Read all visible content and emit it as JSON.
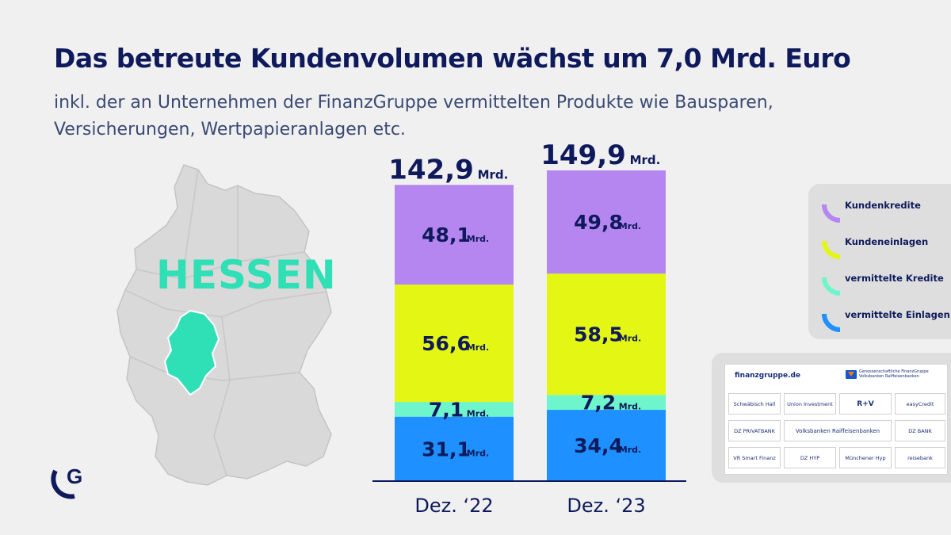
{
  "header": {
    "title": "Das betreute Kundenvolumen wächst um 7,0 Mrd. Euro",
    "subtitle_line1": "inkl. der an Unternehmen der FinanzGruppe vermittelten Produkte wie Bausparen,",
    "subtitle_line2": "Versicherungen, Wertpapieranlagen etc."
  },
  "map": {
    "label": "HESSEN",
    "region_icon": "germany-map-icon",
    "highlight_icon": "hessen-region-icon"
  },
  "chart_data": {
    "type": "bar",
    "stacked": true,
    "unit": "Mrd.",
    "categories": [
      "Dez. ‘22",
      "Dez. ‘23"
    ],
    "totals": [
      "142,9",
      "149,9"
    ],
    "total_values": [
      142.9,
      149.9
    ],
    "series": [
      {
        "name": "vermittelte Einlagen",
        "color": "#1e90ff",
        "values": [
          31.1,
          34.4
        ],
        "labels": [
          "31,1",
          "34,4"
        ]
      },
      {
        "name": "vermittelte Kredite",
        "color": "#6ef5cc",
        "values": [
          7.1,
          7.2
        ],
        "labels": [
          "7,1",
          "7,2"
        ]
      },
      {
        "name": "Kundeneinlagen",
        "color": "#e4f714",
        "values": [
          56.6,
          58.5
        ],
        "labels": [
          "56,6",
          "58,5"
        ]
      },
      {
        "name": "Kundenkredite",
        "color": "#b586f0",
        "values": [
          48.1,
          49.8
        ],
        "labels": [
          "48,1",
          "49,8"
        ]
      }
    ],
    "ylim": [
      0,
      149.9
    ]
  },
  "legend": {
    "items": [
      {
        "label": "Kundenkredite",
        "color": "#b586f0"
      },
      {
        "label": "Kundeneinlagen",
        "color": "#e4f714"
      },
      {
        "label": "vermittelte Kredite",
        "color": "#6ef5cc"
      },
      {
        "label": "vermittelte Einlagen",
        "color": "#1e90ff"
      }
    ]
  },
  "partners": {
    "url": "finanzgruppe.de",
    "group_name": "Genossenschaftliche FinanzGruppe Volksbanken Raiffeisenbanken",
    "logos": [
      "Schwäbisch Hall",
      "Union Investment",
      "R+V",
      "easyCredit",
      "DZ PRIVATBANK",
      "Volksbanken Raiffeisenbanken",
      "DZ BANK",
      "VR Smart Finanz",
      "DZ HYP",
      "Münchener Hyp",
      "reisebank"
    ]
  },
  "brand": {
    "logo_letter": "G",
    "accent": "#0f1a5c"
  }
}
